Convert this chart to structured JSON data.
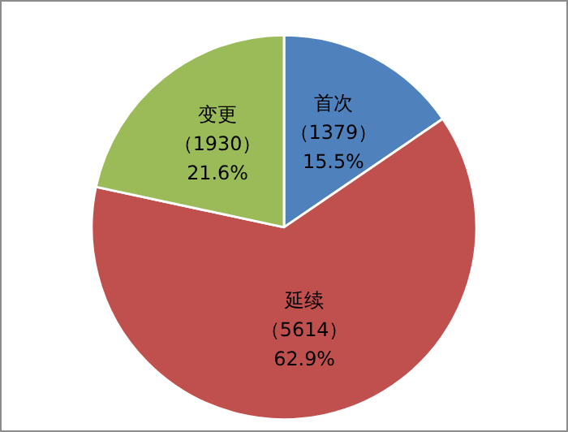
{
  "chart_data": {
    "type": "pie",
    "categories": [
      "首次",
      "延续",
      "变更"
    ],
    "values": [
      1379,
      5614,
      1930
    ],
    "colors": [
      "#4f81bd",
      "#c0504d",
      "#9bbb59"
    ],
    "value_labels": [
      "（1379）\n15.5%",
      "（5614）\n62.9%",
      "（1930）\n21.6%"
    ],
    "legend": false
  }
}
